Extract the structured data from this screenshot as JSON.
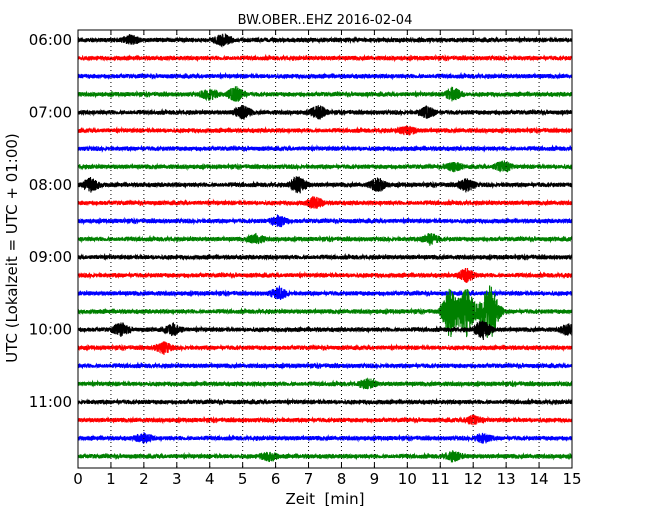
{
  "chart_data": {
    "type": "line",
    "title": "BW.OBER..EHZ 2016-02-04",
    "xlabel": "Zeit  [min]",
    "ylabel": "UTC (Lokalzeit = UTC + 01:00)",
    "xlim": [
      0,
      15
    ],
    "x_ticks": [
      0,
      1,
      2,
      3,
      4,
      5,
      6,
      7,
      8,
      9,
      10,
      11,
      12,
      13,
      14,
      15
    ],
    "y_tick_labels": [
      "06:00",
      "07:00",
      "08:00",
      "09:00",
      "10:00",
      "11:00"
    ],
    "grid": "vertical dotted",
    "trace_colors": [
      "#000000",
      "#ff0000",
      "#0000ff",
      "#008000"
    ],
    "rows": [
      {
        "time": "06:00",
        "color": "#000000",
        "bursts": [
          [
            1.6,
            0.4
          ],
          [
            4.4,
            0.5
          ]
        ]
      },
      {
        "time": "06:15",
        "color": "#ff0000",
        "bursts": []
      },
      {
        "time": "06:30",
        "color": "#0000ff",
        "bursts": []
      },
      {
        "time": "06:45",
        "color": "#008000",
        "bursts": [
          [
            4.0,
            0.5
          ],
          [
            4.8,
            0.7
          ],
          [
            11.4,
            0.6
          ]
        ]
      },
      {
        "time": "07:00",
        "color": "#000000",
        "bursts": [
          [
            5.0,
            0.6
          ],
          [
            7.3,
            0.6
          ],
          [
            10.6,
            0.5
          ]
        ]
      },
      {
        "time": "07:15",
        "color": "#ff0000",
        "bursts": [
          [
            10.0,
            0.4
          ]
        ]
      },
      {
        "time": "07:30",
        "color": "#0000ff",
        "bursts": []
      },
      {
        "time": "07:45",
        "color": "#008000",
        "bursts": [
          [
            11.4,
            0.4
          ],
          [
            12.9,
            0.5
          ]
        ]
      },
      {
        "time": "08:00",
        "color": "#000000",
        "bursts": [
          [
            0.4,
            0.6
          ],
          [
            6.7,
            0.8
          ],
          [
            9.1,
            0.6
          ],
          [
            11.8,
            0.6
          ]
        ]
      },
      {
        "time": "08:15",
        "color": "#ff0000",
        "bursts": [
          [
            7.2,
            0.5
          ]
        ]
      },
      {
        "time": "08:30",
        "color": "#0000ff",
        "bursts": [
          [
            6.1,
            0.5
          ]
        ]
      },
      {
        "time": "08:45",
        "color": "#008000",
        "bursts": [
          [
            5.4,
            0.4
          ],
          [
            10.7,
            0.5
          ]
        ]
      },
      {
        "time": "09:00",
        "color": "#000000",
        "bursts": []
      },
      {
        "time": "09:15",
        "color": "#ff0000",
        "bursts": [
          [
            11.8,
            0.6
          ]
        ]
      },
      {
        "time": "09:30",
        "color": "#0000ff",
        "bursts": [
          [
            6.1,
            0.5
          ]
        ]
      },
      {
        "time": "09:45",
        "color": "#008000",
        "bursts": [
          [
            11.3,
            2.6
          ],
          [
            11.8,
            2.5
          ],
          [
            12.4,
            1.9
          ],
          [
            12.6,
            1.5
          ]
        ]
      },
      {
        "time": "10:00",
        "color": "#000000",
        "bursts": [
          [
            1.3,
            0.6
          ],
          [
            2.9,
            0.5
          ],
          [
            12.3,
            0.9
          ],
          [
            14.9,
            0.5
          ]
        ]
      },
      {
        "time": "10:15",
        "color": "#ff0000",
        "bursts": [
          [
            2.6,
            0.5
          ]
        ]
      },
      {
        "time": "10:30",
        "color": "#0000ff",
        "bursts": []
      },
      {
        "time": "10:45",
        "color": "#008000",
        "bursts": [
          [
            8.8,
            0.4
          ]
        ]
      },
      {
        "time": "11:00",
        "color": "#000000",
        "bursts": []
      },
      {
        "time": "11:15",
        "color": "#ff0000",
        "bursts": [
          [
            12.0,
            0.4
          ]
        ]
      },
      {
        "time": "11:30",
        "color": "#0000ff",
        "bursts": [
          [
            2.0,
            0.4
          ],
          [
            12.3,
            0.4
          ]
        ]
      },
      {
        "time": "11:45",
        "color": "#008000",
        "bursts": [
          [
            5.8,
            0.4
          ],
          [
            11.4,
            0.4
          ]
        ]
      }
    ]
  }
}
